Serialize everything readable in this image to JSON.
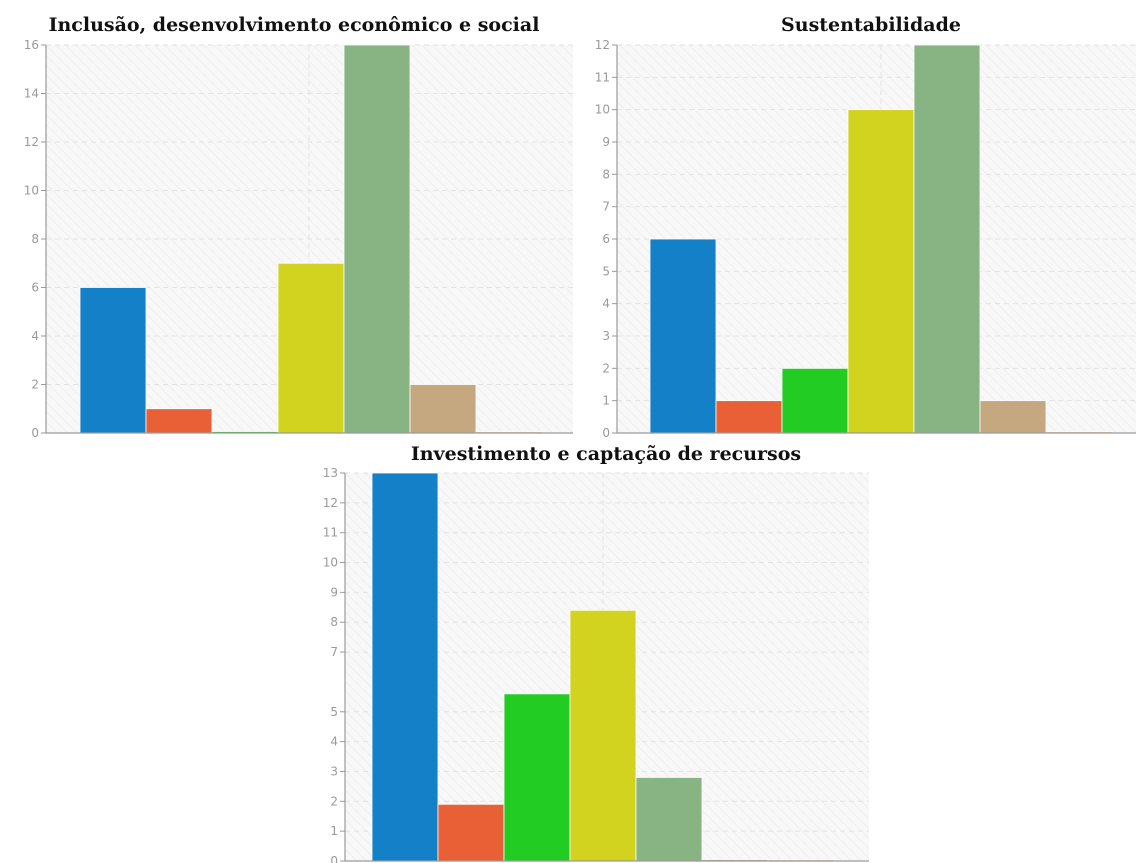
{
  "colors": {
    "blue": "#1380c8",
    "orange": "#e95f36",
    "green": "#22cc22",
    "yellow": "#d2d31e",
    "sage": "#88b383",
    "tan": "#c6a880",
    "peach": "#f2c9b0",
    "plot_bg": "#f7f7f7"
  },
  "chart_data": [
    {
      "type": "bar",
      "title": "Inclusão, desenvolvimento econômico e social",
      "ylim": [
        0,
        16
      ],
      "yticks": [
        0,
        2,
        4,
        6,
        8,
        10,
        12,
        14,
        16
      ],
      "grid": true,
      "series_colors": [
        "#1380c8",
        "#e95f36",
        "#22cc22",
        "#d2d31e",
        "#88b383",
        "#c6a880",
        "#f2c9b0"
      ],
      "values": [
        6,
        1,
        0,
        7,
        16,
        2,
        0
      ]
    },
    {
      "type": "bar",
      "title": "Sustentabilidade",
      "ylim": [
        0,
        12
      ],
      "yticks": [
        0,
        1,
        2,
        3,
        4,
        5,
        6,
        7,
        8,
        9,
        10,
        11,
        12
      ],
      "grid": true,
      "series_colors": [
        "#1380c8",
        "#e95f36",
        "#22cc22",
        "#d2d31e",
        "#88b383",
        "#c6a880",
        "#f2c9b0"
      ],
      "values": [
        6,
        1,
        2,
        10,
        12,
        1,
        0
      ]
    },
    {
      "type": "bar",
      "title": "Investimento e captação de recursos",
      "ylim": [
        0,
        13
      ],
      "yticks": [
        0,
        1,
        2,
        3,
        4,
        5,
        7,
        8,
        9,
        10,
        11,
        12,
        13
      ],
      "grid": true,
      "series_colors": [
        "#1380c8",
        "#e95f36",
        "#22cc22",
        "#d2d31e",
        "#88b383",
        "#c6a880",
        "#f2c9b0"
      ],
      "values": [
        13,
        1.9,
        5.6,
        8.4,
        2.8,
        0,
        0
      ]
    }
  ]
}
